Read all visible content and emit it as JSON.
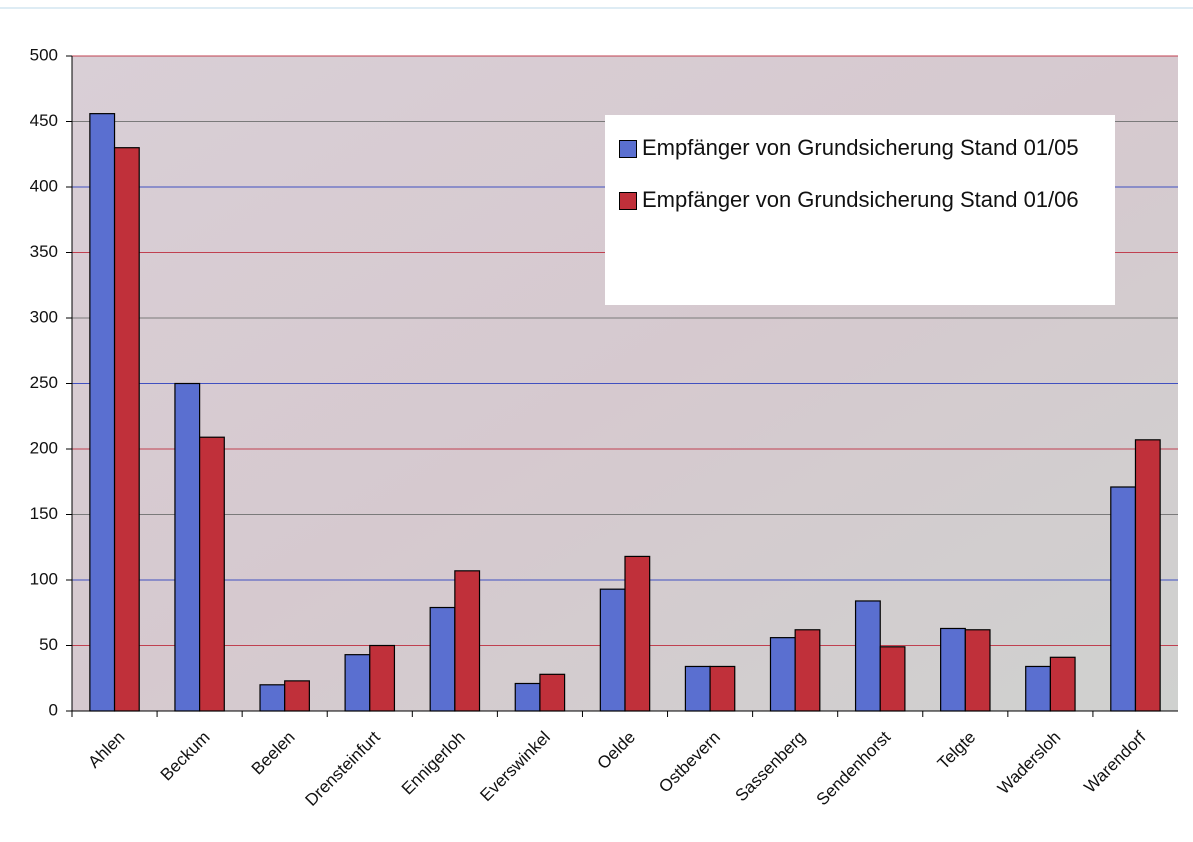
{
  "chart_data": {
    "type": "bar",
    "categories": [
      "Ahlen",
      "Beckum",
      "Beelen",
      "Drensteinfurt",
      "Ennigerloh",
      "Everswinkel",
      "Oelde",
      "Ostbevern",
      "Sassenberg",
      "Sendenhorst",
      "Telgte",
      "Wadersloh",
      "Warendorf"
    ],
    "series": [
      {
        "name": "Empfänger von Grundsicherung Stand 01/05",
        "color": "#5a6fd0",
        "values": [
          456,
          250,
          20,
          43,
          79,
          21,
          93,
          34,
          56,
          84,
          63,
          34,
          171
        ]
      },
      {
        "name": "Empfänger von Grundsicherung Stand 01/06",
        "color": "#c0303a",
        "values": [
          430,
          209,
          23,
          50,
          107,
          28,
          118,
          34,
          62,
          49,
          62,
          41,
          207
        ]
      }
    ],
    "ylim": [
      0,
      500
    ],
    "yticks": [
      0,
      50,
      100,
      150,
      200,
      250,
      300,
      350,
      400,
      450,
      500
    ],
    "grid": true,
    "legend": "upper right"
  }
}
